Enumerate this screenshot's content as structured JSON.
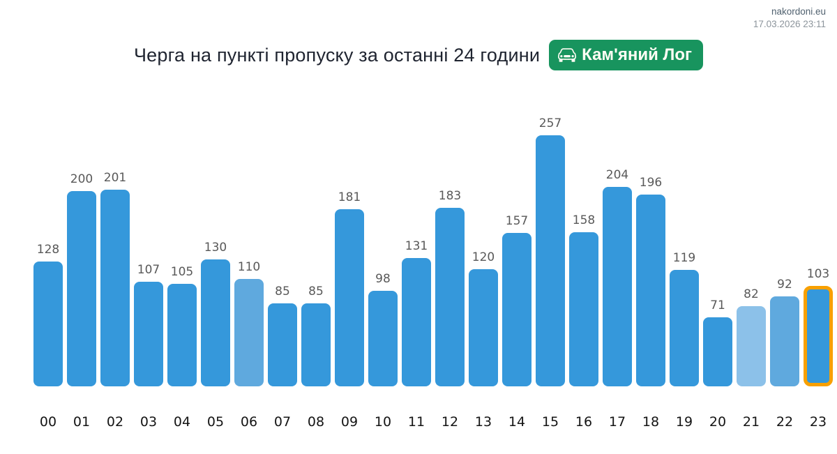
{
  "header": {
    "site": "nakordoni.eu",
    "timestamp": "17.03.2026 23:11"
  },
  "title": "Черга на пункті пропуску за останні 24 години",
  "badge": {
    "label": "Кам'яний Лог",
    "background_color": "#18945e",
    "text_color": "#fffdf4",
    "icon": "car-front-icon"
  },
  "chart_data": {
    "type": "bar",
    "title": "Черга на пункті пропуску за останні 24 години",
    "xlabel": "",
    "ylabel": "",
    "ylim": [
      0,
      257
    ],
    "grid": false,
    "legend": "none",
    "value_labels_shown": true,
    "categories": [
      "00",
      "01",
      "02",
      "03",
      "04",
      "05",
      "06",
      "07",
      "08",
      "09",
      "10",
      "11",
      "12",
      "13",
      "14",
      "15",
      "16",
      "17",
      "18",
      "19",
      "20",
      "21",
      "22",
      "23"
    ],
    "values": [
      128,
      200,
      201,
      107,
      105,
      130,
      110,
      85,
      85,
      181,
      98,
      131,
      183,
      120,
      157,
      257,
      158,
      204,
      196,
      119,
      71,
      82,
      92,
      103
    ],
    "bar_fill_styles": [
      "default",
      "default",
      "default",
      "default",
      "default",
      "default",
      "medium_light",
      "default",
      "default",
      "default",
      "default",
      "default",
      "default",
      "default",
      "default",
      "default",
      "default",
      "default",
      "default",
      "default",
      "default",
      "light",
      "medium_light",
      "default"
    ],
    "colors": {
      "default": "#3598db",
      "medium_light": "#5fa9de",
      "light": "#8cc1e9",
      "highlight_border": "#f8a000",
      "value_label": "#595959",
      "hour_label": "#141414"
    },
    "highlighted_index": 23
  }
}
